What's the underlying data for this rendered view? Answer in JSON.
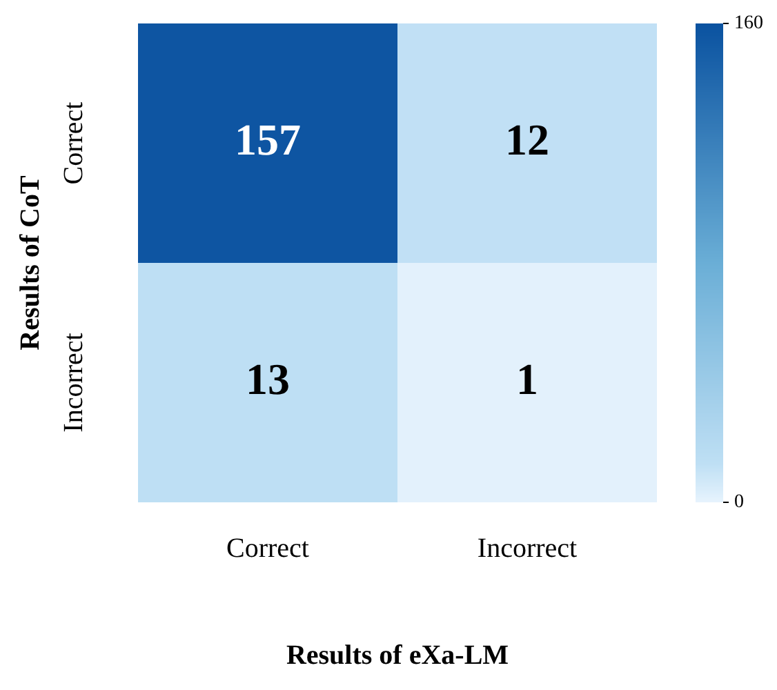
{
  "chart_data": {
    "type": "heatmap",
    "xlabel": "Results of eXa-LM",
    "ylabel": "Results of CoT",
    "categories": [
      "Correct",
      "Incorrect"
    ],
    "y_categories": [
      "Correct",
      "Incorrect"
    ],
    "cells": [
      [
        157,
        12
      ],
      [
        13,
        1
      ]
    ],
    "data_labels": true,
    "clim": [
      0,
      160
    ],
    "cticks": [
      0,
      160
    ]
  }
}
